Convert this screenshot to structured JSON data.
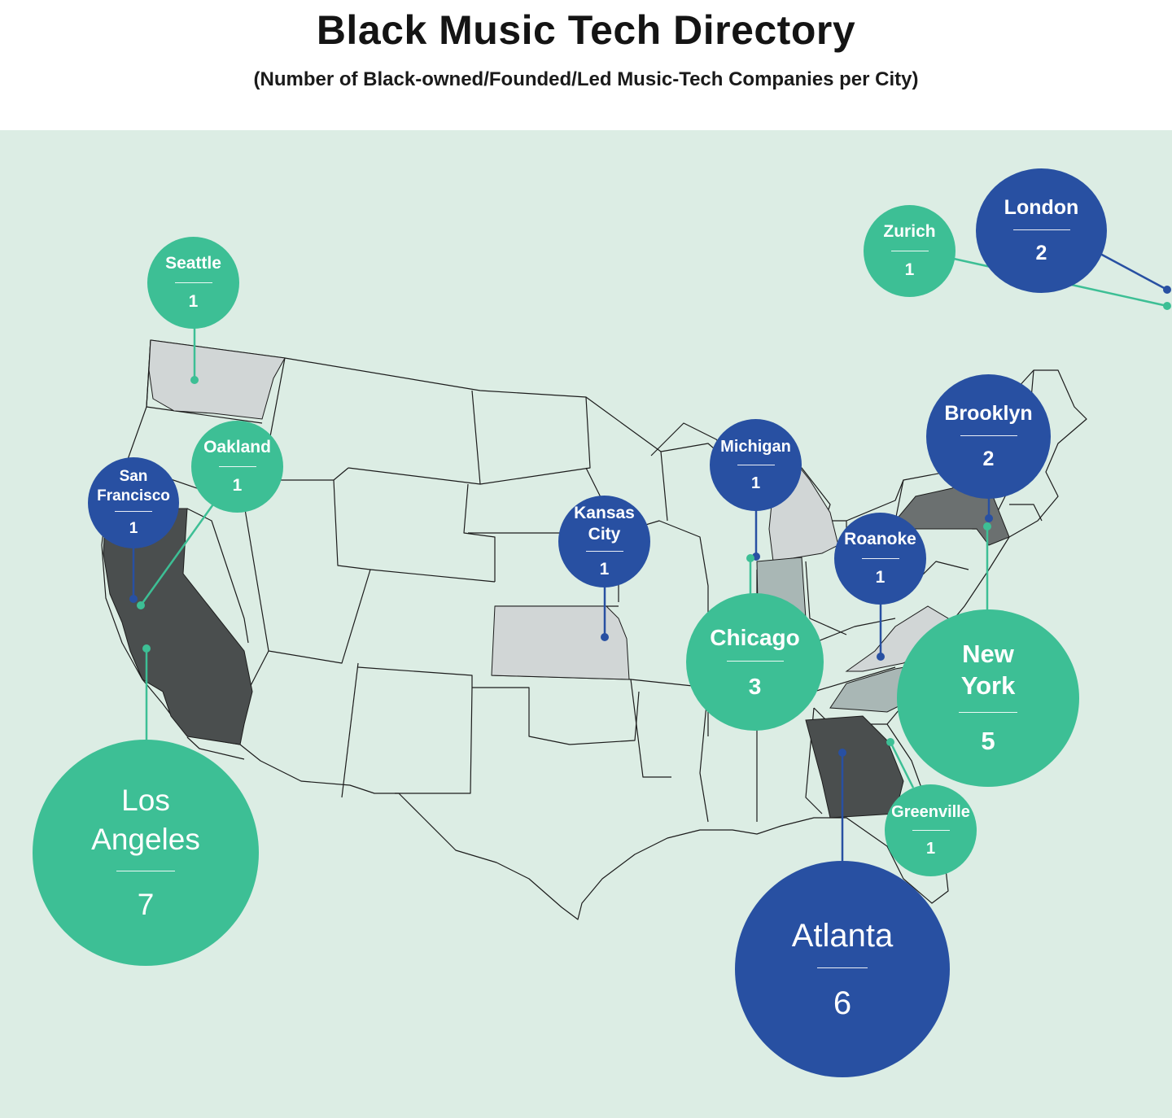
{
  "header": {
    "title": "Black Music Tech Directory",
    "subtitle": "(Number of Black-owned/Founded/Led Music-Tech Companies per City)"
  },
  "colors": {
    "green_bubble": "#3dbf95",
    "blue_bubble": "#2850a2",
    "panel_background": "#dcede4",
    "state_light": "#d1d6d6",
    "state_mid": "#a9b7b5",
    "state_dark": "#4a4e4e"
  },
  "cities": [
    {
      "name": "Seattle",
      "count": "1",
      "color": "green"
    },
    {
      "name": "San Francisco",
      "count": "1",
      "color": "blue"
    },
    {
      "name": "Oakland",
      "count": "1",
      "color": "green"
    },
    {
      "name": "Los Angeles",
      "count": "7",
      "color": "green"
    },
    {
      "name": "Kansas City",
      "count": "1",
      "color": "blue"
    },
    {
      "name": "Michigan",
      "count": "1",
      "color": "blue"
    },
    {
      "name": "Chicago",
      "count": "3",
      "color": "green"
    },
    {
      "name": "Roanoke",
      "count": "1",
      "color": "blue"
    },
    {
      "name": "Brooklyn",
      "count": "2",
      "color": "blue"
    },
    {
      "name": "New York",
      "count": "5",
      "color": "green"
    },
    {
      "name": "Greenville",
      "count": "1",
      "color": "green"
    },
    {
      "name": "Atlanta",
      "count": "6",
      "color": "blue"
    },
    {
      "name": "Zurich",
      "count": "1",
      "color": "green"
    },
    {
      "name": "London",
      "count": "2",
      "color": "blue"
    }
  ]
}
